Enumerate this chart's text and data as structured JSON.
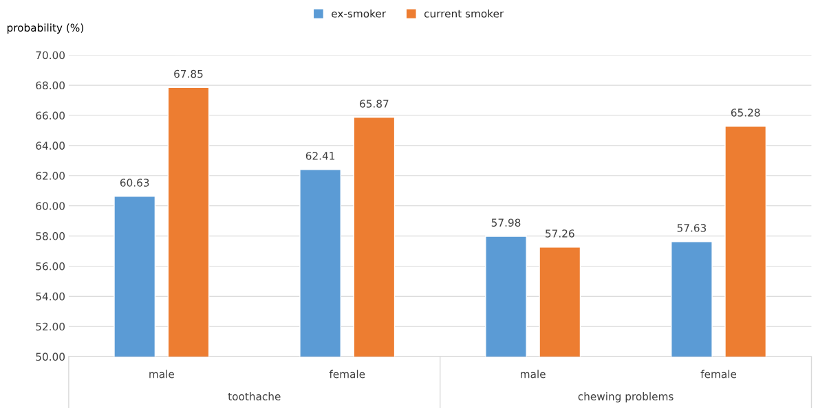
{
  "chart_data": {
    "type": "bar",
    "ylabel": "probability (%)",
    "categories": [
      "male",
      "female",
      "male",
      "female"
    ],
    "annotations": [
      "toothache",
      "chewing problems"
    ],
    "series": [
      {
        "name": "ex-smoker",
        "color": "#5b9bd5",
        "values": [
          60.63,
          62.41,
          57.98,
          57.63
        ]
      },
      {
        "name": "current smoker",
        "color": "#ed7d31",
        "values": [
          67.85,
          65.87,
          57.26,
          65.28
        ]
      }
    ],
    "ylim": [
      50,
      70
    ],
    "yticks": [
      {
        "value": 50,
        "label": "50.00"
      },
      {
        "value": 52,
        "label": "52.00"
      },
      {
        "value": 54,
        "label": "54.00"
      },
      {
        "value": 56,
        "label": "56.00"
      },
      {
        "value": 58,
        "label": "58.00"
      },
      {
        "value": 60,
        "label": "60.00"
      },
      {
        "value": 62,
        "label": "62.00"
      },
      {
        "value": 64,
        "label": "64.00"
      },
      {
        "value": 66,
        "label": "66.00"
      },
      {
        "value": 68,
        "label": "68.00"
      },
      {
        "value": 70,
        "label": "70.00"
      }
    ],
    "grid": "y",
    "legend": "top",
    "data_labels": true
  }
}
